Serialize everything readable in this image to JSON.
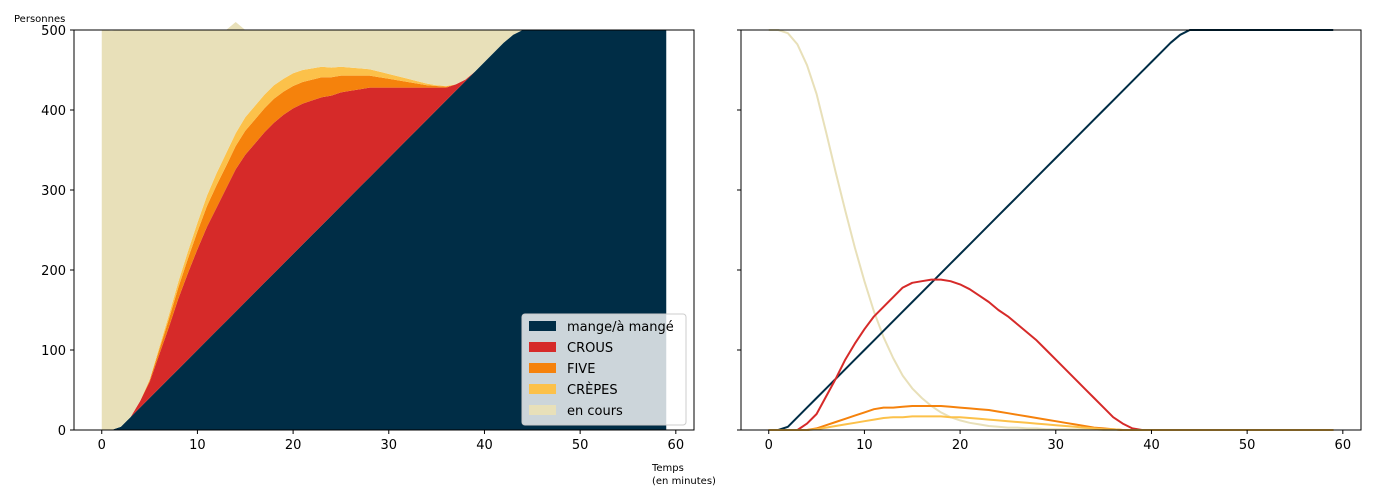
{
  "chart_data": [
    {
      "type": "area",
      "stacked": true,
      "ylabel": "Personnes",
      "xlabel": "Temps\n(en minutes)",
      "xlim": [
        -2.9,
        61.9
      ],
      "ylim": [
        0,
        500
      ],
      "xticks": [
        0,
        10,
        20,
        30,
        40,
        50,
        60
      ],
      "yticks": [
        0,
        100,
        200,
        300,
        400,
        500
      ],
      "grid": false,
      "legend_position": "bottom-right",
      "x": [
        0,
        1,
        2,
        3,
        4,
        5,
        6,
        7,
        8,
        9,
        10,
        11,
        12,
        13,
        14,
        15,
        16,
        17,
        18,
        19,
        20,
        21,
        22,
        23,
        24,
        25,
        26,
        27,
        28,
        29,
        30,
        31,
        32,
        33,
        34,
        35,
        36,
        37,
        38,
        39,
        40,
        41,
        42,
        43,
        44,
        45,
        46,
        47,
        48,
        49,
        50,
        51,
        52,
        53,
        54,
        55,
        56,
        57,
        58,
        59
      ],
      "series": [
        {
          "name": "mange/à mangé",
          "color": "#002d46",
          "values": [
            0,
            0,
            4,
            16,
            28,
            40,
            52,
            64,
            76,
            88,
            100,
            112,
            124,
            136,
            148,
            160,
            172,
            184,
            196,
            208,
            220,
            232,
            244,
            256,
            268,
            280,
            292,
            304,
            316,
            328,
            340,
            352,
            364,
            376,
            388,
            400,
            412,
            424,
            436,
            448,
            460,
            472,
            484,
            494,
            500,
            500,
            500,
            500,
            500,
            500,
            500,
            500,
            500,
            500,
            500,
            500,
            500,
            500,
            500,
            500
          ]
        },
        {
          "name": "CROUS",
          "color": "#d62a29",
          "values": [
            0,
            0,
            0,
            0,
            8,
            20,
            42,
            64,
            88,
            108,
            126,
            142,
            154,
            166,
            178,
            184,
            186,
            188,
            188,
            186,
            182,
            176,
            168,
            160,
            150,
            142,
            132,
            122,
            112,
            100,
            88,
            76,
            64,
            52,
            40,
            28,
            16,
            8,
            2,
            0,
            0,
            0,
            0,
            0,
            0,
            0,
            0,
            0,
            0,
            0,
            0,
            0,
            0,
            0,
            0,
            0,
            0,
            0,
            0,
            0
          ]
        },
        {
          "name": "FIVE",
          "color": "#f5820c",
          "values": [
            0,
            0,
            0,
            0,
            0,
            2,
            6,
            10,
            14,
            18,
            22,
            26,
            28,
            28,
            29,
            30,
            30,
            30,
            30,
            29,
            28,
            27,
            26,
            25,
            23,
            21,
            19,
            17,
            15,
            13,
            11,
            9,
            7,
            5,
            3,
            2,
            1,
            0,
            0,
            0,
            0,
            0,
            0,
            0,
            0,
            0,
            0,
            0,
            0,
            0,
            0,
            0,
            0,
            0,
            0,
            0,
            0,
            0,
            0,
            0
          ]
        },
        {
          "name": "CRÈPES",
          "color": "#fcc14a",
          "values": [
            0,
            0,
            0,
            0,
            0,
            1,
            3,
            5,
            7,
            9,
            11,
            13,
            15,
            16,
            16,
            17,
            17,
            17,
            17,
            16,
            16,
            15,
            14,
            13,
            12,
            11,
            10,
            9,
            8,
            7,
            6,
            5,
            4,
            3,
            2,
            1,
            1,
            0,
            0,
            0,
            0,
            0,
            0,
            0,
            0,
            0,
            0,
            0,
            0,
            0,
            0,
            0,
            0,
            0,
            0,
            0,
            0,
            0,
            0,
            0
          ]
        },
        {
          "name": "en cours",
          "color": "#e8e0b9",
          "values": [
            500,
            499,
            496,
            484,
            464,
            437,
            397,
            357,
            315,
            277,
            241,
            207,
            179,
            154,
            139,
            109,
            95,
            81,
            69,
            61,
            54,
            50,
            48,
            46,
            47,
            46,
            47,
            48,
            49,
            52,
            55,
            58,
            61,
            64,
            67,
            69,
            70,
            68,
            62,
            52,
            40,
            28,
            16,
            6,
            0,
            0,
            0,
            0,
            0,
            0,
            0,
            0,
            0,
            0,
            0,
            0,
            0,
            0,
            0,
            0
          ]
        }
      ]
    },
    {
      "type": "line",
      "xlim": [
        -2.9,
        61.9
      ],
      "ylim": [
        0,
        500
      ],
      "xticks": [
        0,
        10,
        20,
        30,
        40,
        50,
        60
      ],
      "yticks": [
        0,
        100,
        200,
        300,
        400,
        500
      ],
      "grid": false,
      "shared_y": true,
      "x": [
        0,
        1,
        2,
        3,
        4,
        5,
        6,
        7,
        8,
        9,
        10,
        11,
        12,
        13,
        14,
        15,
        16,
        17,
        18,
        19,
        20,
        21,
        22,
        23,
        24,
        25,
        26,
        27,
        28,
        29,
        30,
        31,
        32,
        33,
        34,
        35,
        36,
        37,
        38,
        39,
        40,
        41,
        42,
        43,
        44,
        45,
        46,
        47,
        48,
        49,
        50,
        51,
        52,
        53,
        54,
        55,
        56,
        57,
        58,
        59
      ],
      "series": [
        {
          "color": "#e8e0b9",
          "values": [
            500,
            500,
            496,
            482,
            456,
            420,
            372,
            322,
            274,
            228,
            186,
            148,
            116,
            90,
            68,
            52,
            40,
            30,
            22,
            16,
            12,
            9,
            7,
            5,
            4,
            3,
            3,
            2,
            2,
            1,
            1,
            1,
            1,
            1,
            1,
            0,
            0,
            0,
            0,
            0,
            0,
            0,
            0,
            0,
            0,
            0,
            0,
            0,
            0,
            0,
            0,
            0,
            0,
            0,
            0,
            0,
            0,
            0,
            0,
            0
          ]
        },
        {
          "color": "#002d46",
          "values": [
            0,
            0,
            4,
            16,
            28,
            40,
            52,
            64,
            76,
            88,
            100,
            112,
            124,
            136,
            148,
            160,
            172,
            184,
            196,
            208,
            220,
            232,
            244,
            256,
            268,
            280,
            292,
            304,
            316,
            328,
            340,
            352,
            364,
            376,
            388,
            400,
            412,
            424,
            436,
            448,
            460,
            472,
            484,
            494,
            500,
            500,
            500,
            500,
            500,
            500,
            500,
            500,
            500,
            500,
            500,
            500,
            500,
            500,
            500,
            500
          ]
        },
        {
          "color": "#d62a29",
          "values": [
            0,
            0,
            0,
            0,
            8,
            20,
            42,
            64,
            88,
            108,
            126,
            142,
            154,
            166,
            178,
            184,
            186,
            188,
            188,
            186,
            182,
            176,
            168,
            160,
            150,
            142,
            132,
            122,
            112,
            100,
            88,
            76,
            64,
            52,
            40,
            28,
            16,
            8,
            2,
            0,
            0,
            0,
            0,
            0,
            0,
            0,
            0,
            0,
            0,
            0,
            0,
            0,
            0,
            0,
            0,
            0,
            0,
            0,
            0,
            0
          ]
        },
        {
          "color": "#f5820c",
          "values": [
            0,
            0,
            0,
            0,
            0,
            2,
            6,
            10,
            14,
            18,
            22,
            26,
            28,
            28,
            29,
            30,
            30,
            30,
            30,
            29,
            28,
            27,
            26,
            25,
            23,
            21,
            19,
            17,
            15,
            13,
            11,
            9,
            7,
            5,
            3,
            2,
            1,
            0,
            0,
            0,
            0,
            0,
            0,
            0,
            0,
            0,
            0,
            0,
            0,
            0,
            0,
            0,
            0,
            0,
            0,
            0,
            0,
            0,
            0,
            0
          ]
        },
        {
          "color": "#fcc14a",
          "values": [
            0,
            0,
            0,
            0,
            0,
            1,
            3,
            5,
            7,
            9,
            11,
            13,
            15,
            16,
            16,
            17,
            17,
            17,
            17,
            16,
            16,
            15,
            14,
            13,
            12,
            11,
            10,
            9,
            8,
            7,
            6,
            5,
            4,
            3,
            2,
            1,
            1,
            0,
            0,
            0,
            0,
            0,
            0,
            0,
            0,
            0,
            0,
            0,
            0,
            0,
            0,
            0,
            0,
            0,
            0,
            0,
            0,
            0,
            0,
            0
          ]
        }
      ]
    }
  ]
}
